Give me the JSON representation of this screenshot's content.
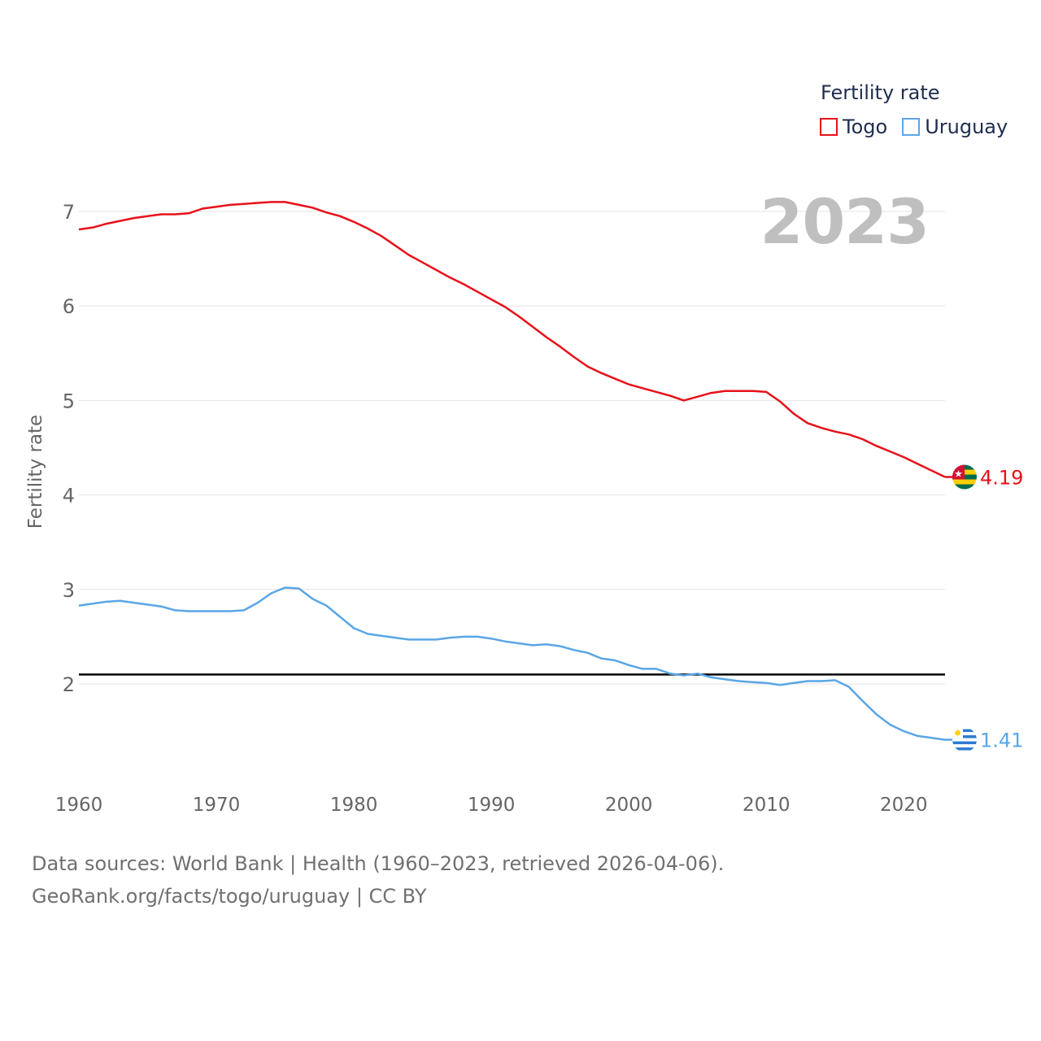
{
  "legend": {
    "title": "Fertility rate",
    "items": [
      {
        "label": "Togo",
        "color": "#e8101a"
      },
      {
        "label": "Uruguay",
        "color": "#5aa6e6"
      }
    ]
  },
  "watermark_year": "2023",
  "footer": {
    "line1": "Data sources: World Bank | Health (1960–2023, retrieved 2026-04-06).",
    "line2": "GeoRank.org/facts/togo/uruguay | CC BY"
  },
  "chart_data": {
    "type": "line",
    "title": "Fertility rate",
    "xlabel": "",
    "ylabel": "Fertility rate",
    "xlim": [
      1960,
      2023
    ],
    "ylim": [
      1.1,
      7.6
    ],
    "x_ticks": [
      1960,
      1970,
      1980,
      1990,
      2000,
      2010,
      2020
    ],
    "y_ticks": [
      2,
      3,
      4,
      5,
      6,
      7
    ],
    "grid": true,
    "reference_line": {
      "value": 2.1,
      "color": "#000000"
    },
    "x": [
      1960,
      1961,
      1962,
      1963,
      1964,
      1965,
      1966,
      1967,
      1968,
      1969,
      1970,
      1971,
      1972,
      1973,
      1974,
      1975,
      1976,
      1977,
      1978,
      1979,
      1980,
      1981,
      1982,
      1983,
      1984,
      1985,
      1986,
      1987,
      1988,
      1989,
      1990,
      1991,
      1992,
      1993,
      1994,
      1995,
      1996,
      1997,
      1998,
      1999,
      2000,
      2001,
      2002,
      2003,
      2004,
      2005,
      2006,
      2007,
      2008,
      2009,
      2010,
      2011,
      2012,
      2013,
      2014,
      2015,
      2016,
      2017,
      2018,
      2019,
      2020,
      2021,
      2022,
      2023
    ],
    "series": [
      {
        "name": "Togo",
        "color": "#e8101a",
        "end_label": "4.19",
        "values": [
          6.81,
          6.83,
          6.87,
          6.9,
          6.93,
          6.95,
          6.97,
          6.97,
          6.98,
          7.03,
          7.05,
          7.07,
          7.08,
          7.09,
          7.1,
          7.1,
          7.07,
          7.04,
          6.99,
          6.95,
          6.89,
          6.82,
          6.74,
          6.64,
          6.54,
          6.46,
          6.38,
          6.3,
          6.23,
          6.15,
          6.07,
          5.99,
          5.89,
          5.78,
          5.67,
          5.57,
          5.46,
          5.36,
          5.29,
          5.23,
          5.17,
          5.13,
          5.09,
          5.05,
          5.0,
          5.04,
          5.08,
          5.1,
          5.1,
          5.1,
          5.09,
          4.99,
          4.86,
          4.76,
          4.71,
          4.67,
          4.64,
          4.59,
          4.52,
          4.46,
          4.4,
          4.33,
          4.26,
          4.19
        ]
      },
      {
        "name": "Uruguay",
        "color": "#5aa6e6",
        "end_label": "1.41",
        "values": [
          2.83,
          2.85,
          2.87,
          2.88,
          2.86,
          2.84,
          2.82,
          2.78,
          2.77,
          2.77,
          2.77,
          2.77,
          2.78,
          2.86,
          2.96,
          3.02,
          3.01,
          2.9,
          2.83,
          2.71,
          2.59,
          2.53,
          2.51,
          2.49,
          2.47,
          2.47,
          2.47,
          2.49,
          2.5,
          2.5,
          2.48,
          2.45,
          2.43,
          2.41,
          2.42,
          2.4,
          2.36,
          2.33,
          2.27,
          2.25,
          2.2,
          2.16,
          2.16,
          2.11,
          2.09,
          2.11,
          2.07,
          2.05,
          2.03,
          2.02,
          2.01,
          1.99,
          2.01,
          2.03,
          2.03,
          2.04,
          1.97,
          1.82,
          1.68,
          1.57,
          1.5,
          1.45,
          1.43,
          1.41
        ]
      }
    ]
  }
}
